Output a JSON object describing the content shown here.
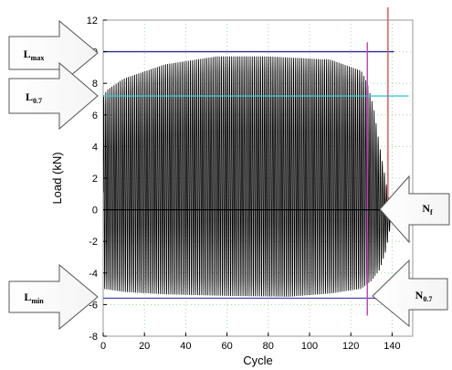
{
  "chart_data": {
    "type": "line",
    "xlabel": "Cycle",
    "ylabel": "Load (kN)",
    "xlim": [
      0,
      150
    ],
    "ylim": [
      -8,
      12
    ],
    "xticks": [
      0,
      20,
      40,
      60,
      80,
      100,
      120,
      140
    ],
    "yticks": [
      -8,
      -6,
      -4,
      -2,
      0,
      2,
      4,
      6,
      8,
      10,
      12
    ],
    "grid": true,
    "series": [
      {
        "style": "oscillation",
        "color": "#000000",
        "x_start": 0,
        "x_end": 140,
        "cycle_count": 140,
        "envelope_upper": [
          [
            0,
            7.2
          ],
          [
            2,
            7.6
          ],
          [
            10,
            8.3
          ],
          [
            30,
            9.2
          ],
          [
            55,
            9.7
          ],
          [
            80,
            9.7
          ],
          [
            110,
            9.5
          ],
          [
            125,
            8.8
          ],
          [
            128,
            8.0
          ],
          [
            131,
            6.5
          ],
          [
            134,
            4.0
          ],
          [
            137,
            1.8
          ],
          [
            139,
            0.2
          ],
          [
            140,
            -0.3
          ]
        ],
        "envelope_lower": [
          [
            0,
            -5.0
          ],
          [
            10,
            -5.2
          ],
          [
            30,
            -5.35
          ],
          [
            60,
            -5.45
          ],
          [
            90,
            -5.5
          ],
          [
            110,
            -5.3
          ],
          [
            125,
            -5.0
          ],
          [
            130,
            -4.5
          ],
          [
            134,
            -3.8
          ],
          [
            137,
            -2.6
          ],
          [
            139,
            -1.2
          ],
          [
            140,
            -0.4
          ]
        ]
      }
    ],
    "reference_lines": [
      {
        "label_main": "L",
        "label_sub": "max",
        "orientation": "horizontal",
        "value": 10.0,
        "color": "#2b2b9b"
      },
      {
        "label_main": "L",
        "label_sub": "0.7",
        "orientation": "horizontal",
        "value": 7.2,
        "color": "#38c8d8"
      },
      {
        "label_main": "L",
        "label_sub": "min",
        "orientation": "horizontal",
        "value": -5.6,
        "color": "#5050b8"
      },
      {
        "label_main": "N",
        "label_sub": "f",
        "orientation": "vertical",
        "value": 138,
        "color": "#e05050"
      },
      {
        "label_main": "N",
        "label_sub": "0.7",
        "orientation": "vertical",
        "value": 128,
        "color": "#c040c0"
      }
    ]
  }
}
